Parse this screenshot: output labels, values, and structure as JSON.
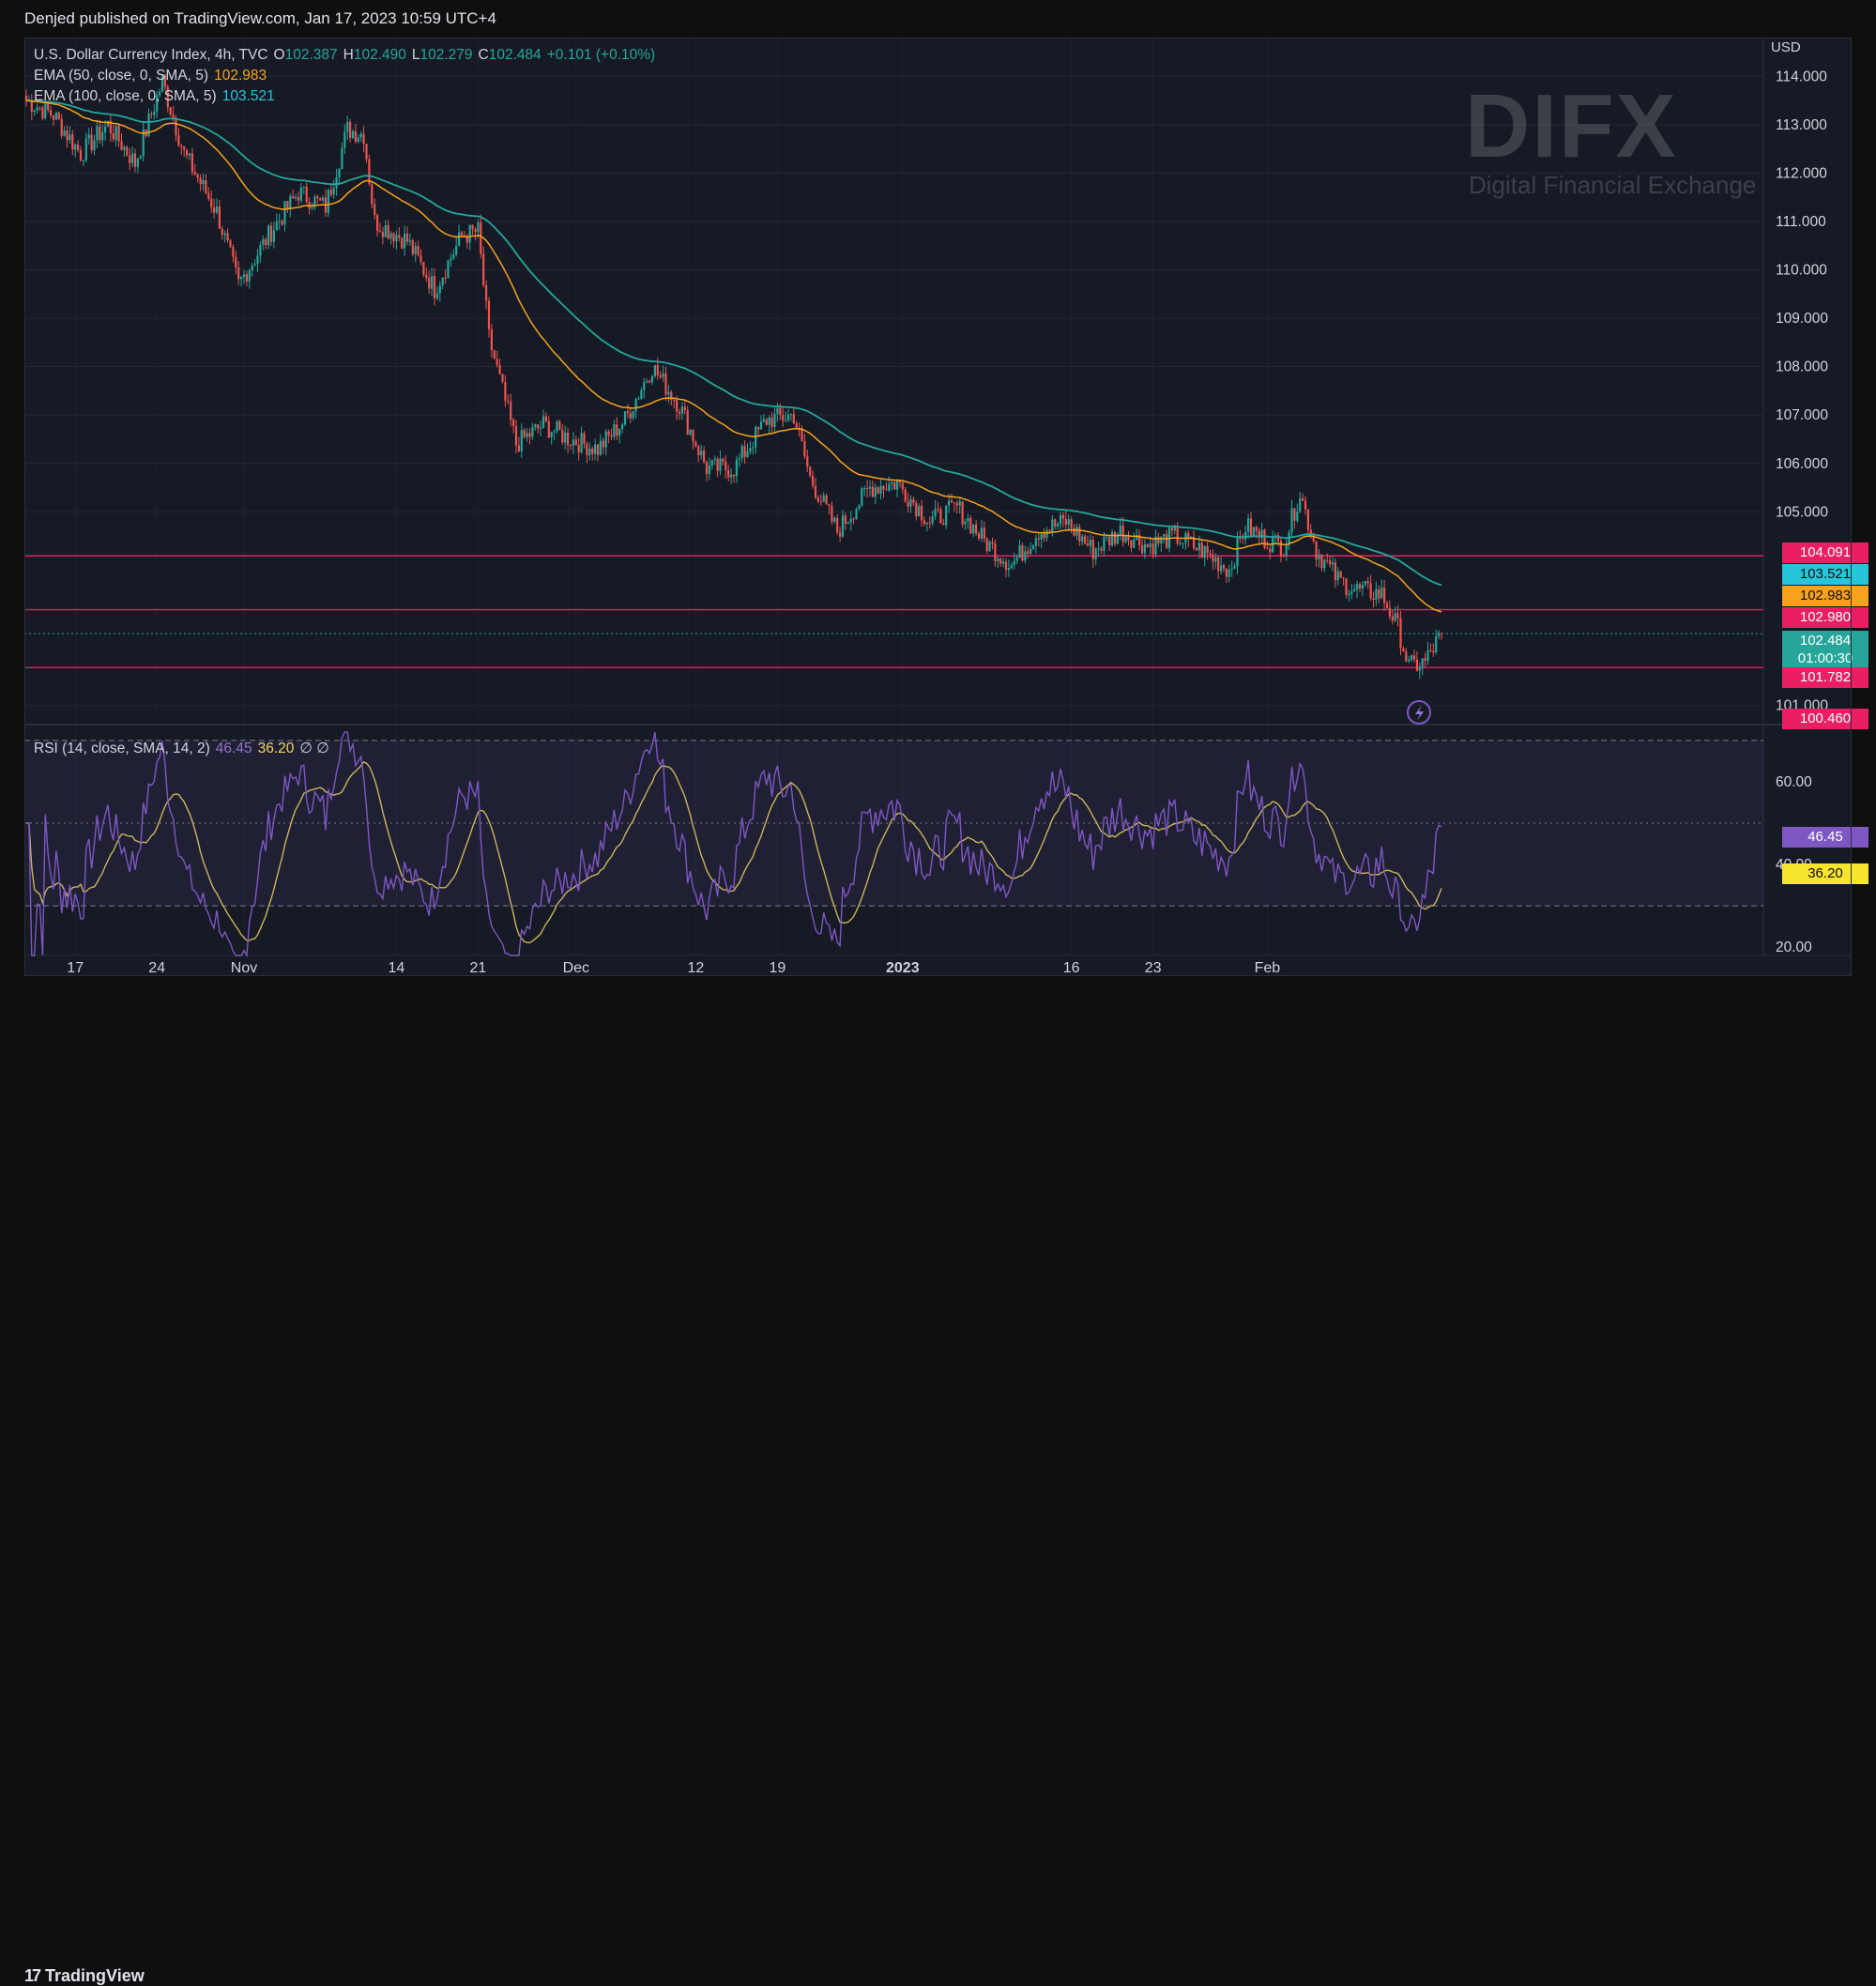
{
  "header": {
    "published": "Denjed published on TradingView.com, Jan 17, 2023 10:59 UTC+4"
  },
  "legend": {
    "symbol": "U.S. Dollar Currency Index, 4h, TVC",
    "o_label": "O",
    "o": "102.387",
    "h_label": "H",
    "h": "102.490",
    "l_label": "L",
    "l": "102.279",
    "c_label": "C",
    "c": "102.484",
    "change": "+0.101 (+0.10%)",
    "ema50": "EMA (50, close, 0, SMA, 5)",
    "ema50_val": "102.983",
    "ema100": "EMA (100, close, 0, SMA, 5)",
    "ema100_val": "103.521",
    "rsi": "RSI (14, close, SMA, 14, 2)",
    "rsi_val": "46.45",
    "rsi_ma_val": "36.20",
    "rsi_extra": "∅ ∅"
  },
  "watermark": {
    "logo": "DIFX",
    "tagline": "Digital Financial Exchange"
  },
  "price_badges": {
    "h1": "104.091",
    "ema100": "103.521",
    "ema50": "102.983",
    "h2": "102.980",
    "last": "102.484",
    "countdown": "01:00:30",
    "h3": "101.782",
    "bottom": "100.460"
  },
  "footer": {
    "brand": "TradingView",
    "brand_mark": "17"
  },
  "colors": {
    "up": "#26a69a",
    "down": "#ef5350",
    "ema50": "#f7a21b",
    "ema100": "#26a69a",
    "rsi": "#7e57c2",
    "rsi_ma": "#c9b45a",
    "hline": "#e91e63",
    "bg": "#161a25"
  },
  "chart_data": [
    {
      "type": "candlestick",
      "title": "U.S. Dollar Currency Index, 4h, TVC",
      "ylabel": "USD",
      "ylim": [
        100.45,
        114.8
      ],
      "x_ticks": [
        "17",
        "24",
        "Nov",
        "14",
        "21",
        "Dec",
        "12",
        "19",
        "2023",
        "16",
        "23",
        "Feb"
      ],
      "y_ticks": [
        "114.000",
        "113.000",
        "112.000",
        "111.000",
        "110.000",
        "109.000",
        "108.000",
        "107.000",
        "106.000",
        "105.000",
        "101.000"
      ],
      "horizontal_lines": [
        104.091,
        102.98,
        101.782
      ],
      "last_price": 102.484,
      "anchors": [
        [
          0,
          113.5
        ],
        [
          10,
          113.2
        ],
        [
          20,
          112.4
        ],
        [
          30,
          113.0
        ],
        [
          40,
          112.2
        ],
        [
          50,
          113.9
        ],
        [
          58,
          112.4
        ],
        [
          70,
          111.2
        ],
        [
          78,
          109.7
        ],
        [
          90,
          110.8
        ],
        [
          100,
          111.6
        ],
        [
          110,
          111.3
        ],
        [
          118,
          112.9
        ],
        [
          124,
          112.8
        ],
        [
          128,
          111.0
        ],
        [
          140,
          110.6
        ],
        [
          150,
          109.6
        ],
        [
          160,
          110.7
        ],
        [
          166,
          110.8
        ],
        [
          170,
          108.6
        ],
        [
          180,
          106.4
        ],
        [
          190,
          106.8
        ],
        [
          200,
          106.5
        ],
        [
          210,
          106.3
        ],
        [
          220,
          106.9
        ],
        [
          230,
          108.0
        ],
        [
          240,
          107.2
        ],
        [
          250,
          105.9
        ],
        [
          260,
          105.9
        ],
        [
          272,
          106.9
        ],
        [
          282,
          107.0
        ],
        [
          288,
          105.7
        ],
        [
          298,
          104.6
        ],
        [
          310,
          105.5
        ],
        [
          320,
          105.6
        ],
        [
          332,
          104.8
        ],
        [
          342,
          105.1
        ],
        [
          352,
          104.4
        ],
        [
          362,
          103.9
        ],
        [
          372,
          104.6
        ],
        [
          382,
          104.8
        ],
        [
          392,
          104.2
        ],
        [
          402,
          104.6
        ],
        [
          412,
          104.3
        ],
        [
          422,
          104.5
        ],
        [
          432,
          104.2
        ],
        [
          442,
          103.8
        ],
        [
          448,
          104.7
        ],
        [
          456,
          104.4
        ],
        [
          462,
          104.3
        ],
        [
          468,
          105.4
        ],
        [
          474,
          104.2
        ],
        [
          482,
          103.6
        ],
        [
          488,
          103.4
        ],
        [
          498,
          103.3
        ],
        [
          504,
          102.6
        ],
        [
          508,
          101.8
        ],
        [
          514,
          101.9
        ],
        [
          520,
          102.48
        ]
      ],
      "candle_count": 521
    },
    {
      "type": "line",
      "title": "RSI (14, close, SMA, 14, 2)",
      "ylim": [
        18,
        72
      ],
      "y_ticks": [
        "60.00",
        "40.00",
        "20.00"
      ],
      "upper_band": 70,
      "middle_band": 50,
      "lower_band": 30,
      "series": [
        {
          "name": "RSI",
          "last": 46.45
        },
        {
          "name": "RSI-based MA",
          "last": 36.2
        }
      ]
    }
  ]
}
